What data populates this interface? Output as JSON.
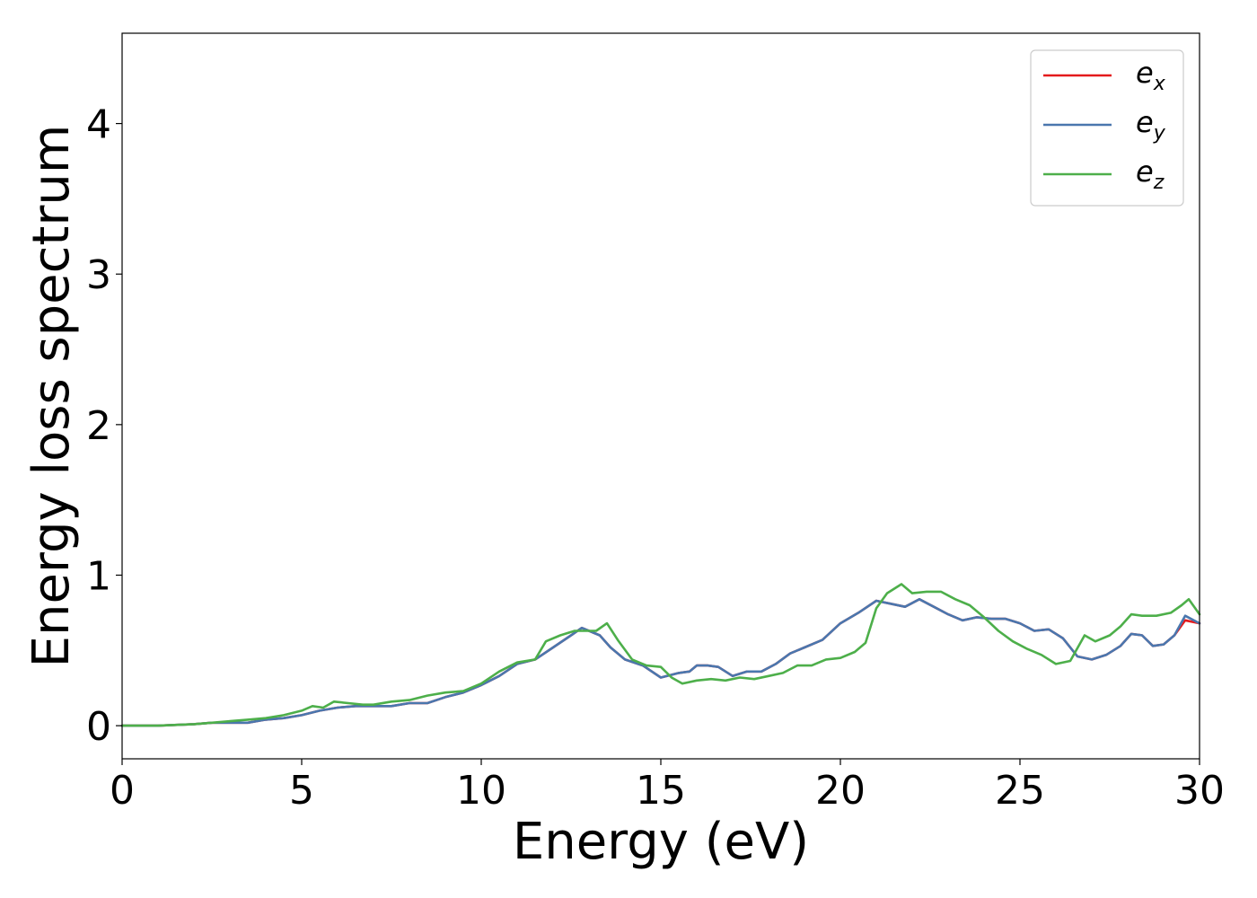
{
  "chart_data": {
    "type": "line",
    "xlabel": "Energy (eV)",
    "ylabel": "Energy loss spectrum",
    "xlim": [
      0,
      30
    ],
    "ylim": [
      -0.22,
      4.6
    ],
    "xticks": [
      0,
      5,
      10,
      15,
      20,
      25,
      30
    ],
    "yticks": [
      0,
      1,
      2,
      3,
      4
    ],
    "grid": false,
    "legend_position": "top-right",
    "series": [
      {
        "name": "e_x",
        "legend_base": "e",
        "legend_sub": "x",
        "color": "#e41a1c",
        "x": [
          0,
          1,
          2,
          2.5,
          3,
          3.5,
          4,
          4.5,
          5,
          5.5,
          6,
          6.5,
          7,
          7.5,
          8,
          8.5,
          9,
          9.5,
          10,
          10.5,
          11,
          11.5,
          12,
          12.5,
          12.8,
          13,
          13.3,
          13.6,
          14,
          14.5,
          15,
          15.5,
          15.8,
          16,
          16.3,
          16.6,
          17,
          17.4,
          17.8,
          18.2,
          18.6,
          19,
          19.5,
          20,
          20.5,
          21,
          21.4,
          21.8,
          22.2,
          22.6,
          23,
          23.4,
          23.8,
          24.2,
          24.6,
          25,
          25.4,
          25.8,
          26.2,
          26.6,
          27,
          27.4,
          27.8,
          28.1,
          28.4,
          28.7,
          29,
          29.3,
          29.6,
          30
        ],
        "y": [
          0,
          0,
          0.01,
          0.02,
          0.02,
          0.02,
          0.04,
          0.05,
          0.07,
          0.1,
          0.12,
          0.13,
          0.13,
          0.13,
          0.15,
          0.15,
          0.19,
          0.22,
          0.27,
          0.33,
          0.41,
          0.44,
          0.52,
          0.6,
          0.65,
          0.63,
          0.6,
          0.52,
          0.44,
          0.4,
          0.32,
          0.35,
          0.36,
          0.4,
          0.4,
          0.39,
          0.33,
          0.36,
          0.36,
          0.41,
          0.48,
          0.52,
          0.57,
          0.68,
          0.75,
          0.83,
          0.81,
          0.79,
          0.84,
          0.79,
          0.74,
          0.7,
          0.72,
          0.71,
          0.71,
          0.68,
          0.63,
          0.64,
          0.58,
          0.46,
          0.44,
          0.47,
          0.53,
          0.61,
          0.6,
          0.53,
          0.54,
          0.6,
          0.7,
          0.68
        ]
      },
      {
        "name": "e_y",
        "legend_base": "e",
        "legend_sub": "y",
        "color": "#4a77ae",
        "x": [
          0,
          1,
          2,
          2.5,
          3,
          3.5,
          4,
          4.5,
          5,
          5.5,
          6,
          6.5,
          7,
          7.5,
          8,
          8.5,
          9,
          9.5,
          10,
          10.5,
          11,
          11.5,
          12,
          12.5,
          12.8,
          13,
          13.3,
          13.6,
          14,
          14.5,
          15,
          15.5,
          15.8,
          16,
          16.3,
          16.6,
          17,
          17.4,
          17.8,
          18.2,
          18.6,
          19,
          19.5,
          20,
          20.5,
          21,
          21.4,
          21.8,
          22.2,
          22.6,
          23,
          23.4,
          23.8,
          24.2,
          24.6,
          25,
          25.4,
          25.8,
          26.2,
          26.6,
          27,
          27.4,
          27.8,
          28.1,
          28.4,
          28.7,
          29,
          29.3,
          29.6,
          30
        ],
        "y": [
          0,
          0,
          0.01,
          0.02,
          0.02,
          0.02,
          0.04,
          0.05,
          0.07,
          0.1,
          0.12,
          0.13,
          0.13,
          0.13,
          0.15,
          0.15,
          0.19,
          0.22,
          0.27,
          0.33,
          0.41,
          0.44,
          0.52,
          0.6,
          0.65,
          0.63,
          0.6,
          0.52,
          0.44,
          0.4,
          0.32,
          0.35,
          0.36,
          0.4,
          0.4,
          0.39,
          0.33,
          0.36,
          0.36,
          0.41,
          0.48,
          0.52,
          0.57,
          0.68,
          0.75,
          0.83,
          0.81,
          0.79,
          0.84,
          0.79,
          0.74,
          0.7,
          0.72,
          0.71,
          0.71,
          0.68,
          0.63,
          0.64,
          0.58,
          0.46,
          0.44,
          0.47,
          0.53,
          0.61,
          0.6,
          0.53,
          0.54,
          0.6,
          0.73,
          0.68
        ]
      },
      {
        "name": "e_z",
        "legend_base": "e",
        "legend_sub": "z",
        "color": "#4daf4a",
        "x": [
          0,
          1,
          2,
          2.5,
          3,
          3.5,
          4,
          4.5,
          5,
          5.3,
          5.6,
          5.9,
          6.3,
          6.7,
          7,
          7.5,
          8,
          8.5,
          9,
          9.5,
          10,
          10.5,
          11,
          11.5,
          11.8,
          12.2,
          12.6,
          13,
          13.2,
          13.5,
          13.8,
          14.2,
          14.6,
          15,
          15.3,
          15.6,
          16,
          16.4,
          16.8,
          17.2,
          17.6,
          18,
          18.4,
          18.8,
          19.2,
          19.6,
          20,
          20.4,
          20.7,
          21,
          21.3,
          21.7,
          22,
          22.4,
          22.8,
          23.2,
          23.6,
          24,
          24.4,
          24.8,
          25.2,
          25.6,
          26,
          26.4,
          26.8,
          27.1,
          27.5,
          27.8,
          28.1,
          28.4,
          28.8,
          29.2,
          29.5,
          29.7,
          30
        ],
        "y": [
          0,
          0,
          0.01,
          0.02,
          0.03,
          0.04,
          0.05,
          0.07,
          0.1,
          0.13,
          0.12,
          0.16,
          0.15,
          0.14,
          0.14,
          0.16,
          0.17,
          0.2,
          0.22,
          0.23,
          0.28,
          0.36,
          0.42,
          0.44,
          0.56,
          0.6,
          0.63,
          0.63,
          0.63,
          0.68,
          0.57,
          0.44,
          0.4,
          0.39,
          0.32,
          0.28,
          0.3,
          0.31,
          0.3,
          0.32,
          0.31,
          0.33,
          0.35,
          0.4,
          0.4,
          0.44,
          0.45,
          0.49,
          0.55,
          0.78,
          0.88,
          0.94,
          0.88,
          0.89,
          0.89,
          0.84,
          0.8,
          0.72,
          0.63,
          0.56,
          0.51,
          0.47,
          0.41,
          0.43,
          0.6,
          0.56,
          0.6,
          0.66,
          0.74,
          0.73,
          0.73,
          0.75,
          0.8,
          0.84,
          0.74
        ]
      }
    ]
  }
}
